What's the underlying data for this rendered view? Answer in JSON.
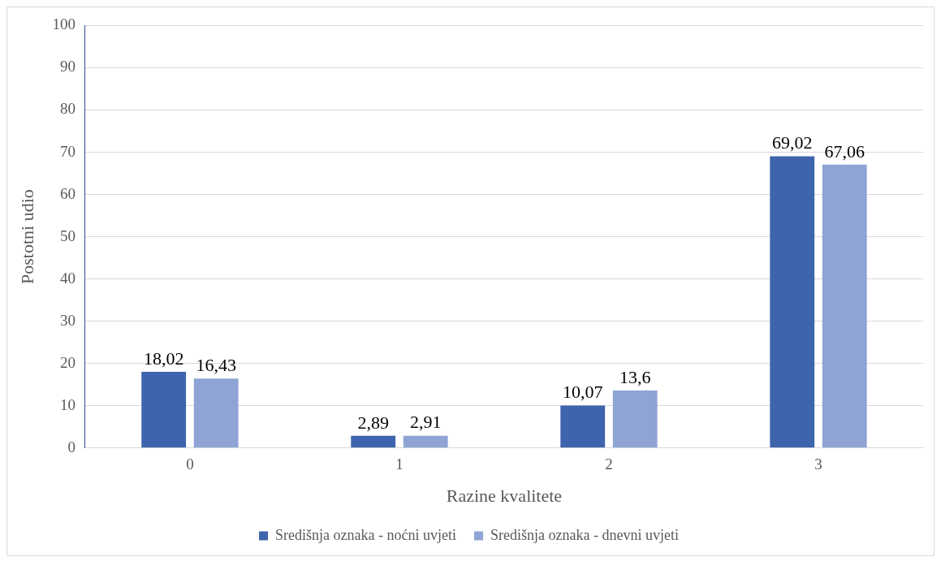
{
  "chart_data": {
    "type": "bar",
    "xlabel": "Razine kvalitete",
    "ylabel": "Postotni udio",
    "categories": [
      "0",
      "1",
      "2",
      "3"
    ],
    "series": [
      {
        "name": "Središnja oznaka - noćni uvjeti",
        "color": "#3e64ad",
        "values": [
          18.02,
          2.89,
          10.07,
          69.02
        ],
        "value_labels": [
          "18,02",
          "2,89",
          "10,07",
          "69,02"
        ]
      },
      {
        "name": "Središnja oznaka - dnevni uvjeti",
        "color": "#8fa4d5",
        "values": [
          16.43,
          2.91,
          13.6,
          67.06
        ],
        "value_labels": [
          "16,43",
          "2,91",
          "13,6",
          "67,06"
        ]
      }
    ],
    "ylim": [
      0,
      100
    ],
    "yticks": [
      0,
      10,
      20,
      30,
      40,
      50,
      60,
      70,
      80,
      90,
      100
    ],
    "grid": "y",
    "legend": "bottom"
  }
}
